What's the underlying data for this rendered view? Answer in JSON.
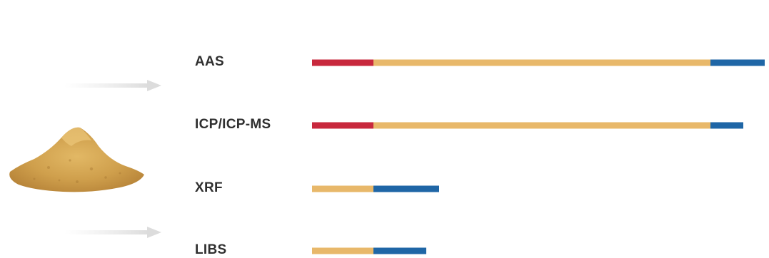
{
  "colors": {
    "segment_1": "#c8283d",
    "segment_2": "#e8b86a",
    "segment_3": "#1f66a6",
    "label_text": "#2f2f2f"
  },
  "icons": {
    "sample": "powder-pile-icon",
    "arrows": "faded-arrow-icon"
  },
  "chart_data": {
    "type": "bar",
    "orientation": "horizontal",
    "stacked": true,
    "categories": [
      "AAS",
      "ICP/ICP-MS",
      "XRF",
      "LIBS"
    ],
    "series": [
      {
        "color": "#c8283d",
        "values": [
          86,
          86,
          0,
          0
        ]
      },
      {
        "color": "#e8b86a",
        "values": [
          472,
          472,
          86,
          86
        ]
      },
      {
        "color": "#1f66a6",
        "values": [
          76,
          46,
          92,
          74
        ]
      }
    ],
    "xlim": [
      0,
      634
    ],
    "title": "",
    "xlabel": "",
    "ylabel": "",
    "grid": false,
    "legend": "none"
  }
}
